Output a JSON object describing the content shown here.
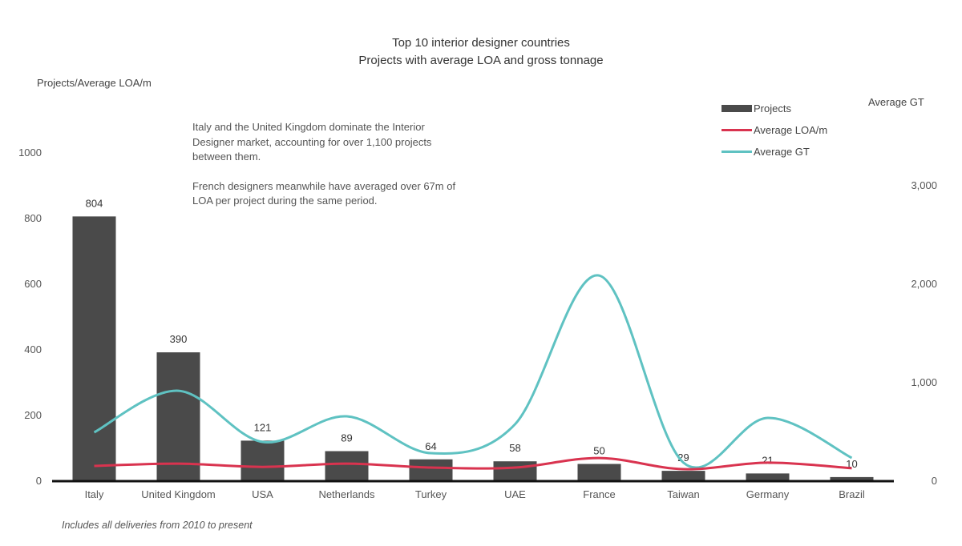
{
  "chart_data": {
    "type": "bar",
    "title": "Top 10 interior designer countries",
    "subtitle": "Projects with average LOA and gross tonnage",
    "ylabel": "Projects/Average LOA/m",
    "y2label": "Average GT",
    "ylim": [
      0,
      1000
    ],
    "y2lim": [
      0,
      3000
    ],
    "yticks": [
      "0",
      "200",
      "400",
      "600",
      "800",
      "1000"
    ],
    "y2ticks": [
      "0",
      "1,000",
      "2,000",
      "3,000"
    ],
    "grid": false,
    "legend_position": "top-right",
    "categories": [
      "Italy",
      "United Kingdom",
      "USA",
      "Netherlands",
      "Turkey",
      "UAE",
      "France",
      "Taiwan",
      "Germany",
      "Brazil"
    ],
    "series": [
      {
        "name": "Projects",
        "type": "bar",
        "axis": "left",
        "color": "#4a4a4a",
        "values": [
          804,
          390,
          121,
          89,
          64,
          58,
          50,
          29,
          21,
          10
        ],
        "labels": [
          "804",
          "390",
          "121",
          "89",
          "64",
          "58",
          "50",
          "29",
          "21",
          "10"
        ]
      },
      {
        "name": "Average LOA/m",
        "type": "line",
        "axis": "left",
        "color": "#d9334f",
        "values": [
          44,
          51,
          41,
          51,
          39,
          39,
          68,
          34,
          54,
          37
        ]
      },
      {
        "name": "Average GT",
        "type": "line",
        "axis": "right",
        "color": "#5fc2c2",
        "values": [
          488,
          910,
          390,
          650,
          276,
          570,
          2080,
          180,
          634,
          228
        ]
      }
    ],
    "annotation": [
      "Italy and the United Kingdom dominate the Interior Designer market, accounting for over 1,100 projects between them.",
      "French designers meanwhile have averaged over 67m of LOA per project during the same period."
    ],
    "footnote": "Includes all  deliveries from 2010 to present"
  }
}
